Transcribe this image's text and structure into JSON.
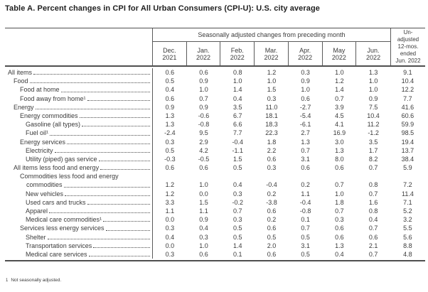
{
  "title": "Table A. Percent changes in CPI for All Urban Consumers (CPI-U): U.S. city average",
  "table": {
    "span_header": "Seasonally adjusted changes from preceding month",
    "unadjusted_header": "Un-\nadjusted\n12-mos.\nended\nJun. 2022",
    "month_headers": [
      "Dec.\n2021",
      "Jan.\n2022",
      "Feb.\n2022",
      "Mar.\n2022",
      "Apr.\n2022",
      "May\n2022",
      "Jun.\n2022"
    ],
    "rows": [
      {
        "label": "All items",
        "indent": 0,
        "values": [
          "0.6",
          "0.6",
          "0.8",
          "1.2",
          "0.3",
          "1.0",
          "1.3",
          "9.1"
        ]
      },
      {
        "label": "Food",
        "indent": 1,
        "values": [
          "0.5",
          "0.9",
          "1.0",
          "1.0",
          "0.9",
          "1.2",
          "1.0",
          "10.4"
        ]
      },
      {
        "label": "Food at home",
        "indent": 2,
        "values": [
          "0.4",
          "1.0",
          "1.4",
          "1.5",
          "1.0",
          "1.4",
          "1.0",
          "12.2"
        ]
      },
      {
        "label": "Food away from home¹",
        "indent": 2,
        "values": [
          "0.6",
          "0.7",
          "0.4",
          "0.3",
          "0.6",
          "0.7",
          "0.9",
          "7.7"
        ]
      },
      {
        "label": "Energy",
        "indent": 1,
        "values": [
          "0.9",
          "0.9",
          "3.5",
          "11.0",
          "-2.7",
          "3.9",
          "7.5",
          "41.6"
        ]
      },
      {
        "label": "Energy commodities",
        "indent": 2,
        "values": [
          "1.3",
          "-0.6",
          "6.7",
          "18.1",
          "-5.4",
          "4.5",
          "10.4",
          "60.6"
        ]
      },
      {
        "label": "Gasoline (all types)",
        "indent": 3,
        "values": [
          "1.3",
          "-0.8",
          "6.6",
          "18.3",
          "-6.1",
          "4.1",
          "11.2",
          "59.9"
        ]
      },
      {
        "label": "Fuel oil¹",
        "indent": 3,
        "values": [
          "-2.4",
          "9.5",
          "7.7",
          "22.3",
          "2.7",
          "16.9",
          "-1.2",
          "98.5"
        ]
      },
      {
        "label": "Energy services",
        "indent": 2,
        "values": [
          "0.3",
          "2.9",
          "-0.4",
          "1.8",
          "1.3",
          "3.0",
          "3.5",
          "19.4"
        ]
      },
      {
        "label": "Electricity",
        "indent": 3,
        "values": [
          "0.5",
          "4.2",
          "-1.1",
          "2.2",
          "0.7",
          "1.3",
          "1.7",
          "13.7"
        ]
      },
      {
        "label": "Utility (piped) gas service",
        "indent": 3,
        "values": [
          "-0.3",
          "-0.5",
          "1.5",
          "0.6",
          "3.1",
          "8.0",
          "8.2",
          "38.4"
        ]
      },
      {
        "label": "All items less food and energy",
        "indent": 1,
        "values": [
          "0.6",
          "0.6",
          "0.5",
          "0.3",
          "0.6",
          "0.6",
          "0.7",
          "5.9"
        ]
      },
      {
        "label": "Commodities less food and energy",
        "label2": "commodities",
        "indent": 2,
        "values": [
          "1.2",
          "1.0",
          "0.4",
          "-0.4",
          "0.2",
          "0.7",
          "0.8",
          "7.2"
        ]
      },
      {
        "label": "New vehicles",
        "indent": 3,
        "values": [
          "1.2",
          "0.0",
          "0.3",
          "0.2",
          "1.1",
          "1.0",
          "0.7",
          "11.4"
        ]
      },
      {
        "label": "Used cars and trucks",
        "indent": 3,
        "values": [
          "3.3",
          "1.5",
          "-0.2",
          "-3.8",
          "-0.4",
          "1.8",
          "1.6",
          "7.1"
        ]
      },
      {
        "label": "Apparel",
        "indent": 3,
        "values": [
          "1.1",
          "1.1",
          "0.7",
          "0.6",
          "-0.8",
          "0.7",
          "0.8",
          "5.2"
        ]
      },
      {
        "label": "Medical care commodities¹",
        "indent": 3,
        "values": [
          "0.0",
          "0.9",
          "0.3",
          "0.2",
          "0.1",
          "0.3",
          "0.4",
          "3.2"
        ]
      },
      {
        "label": "Services less energy services",
        "indent": 2,
        "values": [
          "0.3",
          "0.4",
          "0.5",
          "0.6",
          "0.7",
          "0.6",
          "0.7",
          "5.5"
        ]
      },
      {
        "label": "Shelter",
        "indent": 3,
        "values": [
          "0.4",
          "0.3",
          "0.5",
          "0.5",
          "0.5",
          "0.6",
          "0.6",
          "5.6"
        ]
      },
      {
        "label": "Transportation services",
        "indent": 3,
        "values": [
          "0.0",
          "1.0",
          "1.4",
          "2.0",
          "3.1",
          "1.3",
          "2.1",
          "8.8"
        ]
      },
      {
        "label": "Medical care services",
        "indent": 3,
        "values": [
          "0.3",
          "0.6",
          "0.1",
          "0.6",
          "0.5",
          "0.4",
          "0.7",
          "4.8"
        ]
      }
    ]
  },
  "footnote": {
    "marker": "1",
    "text": "Not seasonally adjusted."
  }
}
